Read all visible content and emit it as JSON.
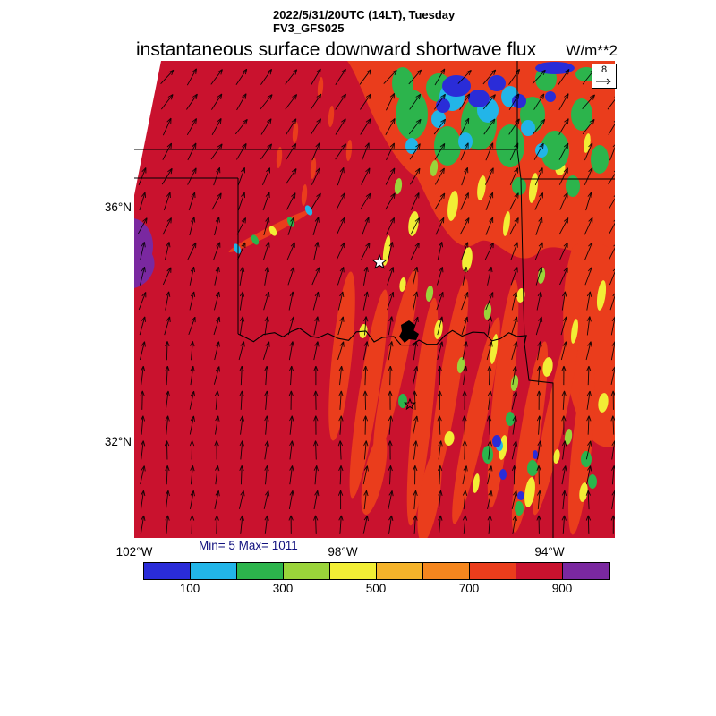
{
  "header": {
    "datetime": "2022/5/31/20UTC (14LT), Tuesday",
    "model": "FV3_GFS025"
  },
  "title": {
    "main": "instantaneous surface downward shortwave flux",
    "units": "W/m**2"
  },
  "reference_vector": {
    "value": "8"
  },
  "stats": {
    "min_max": "Min= 5 Max= 1011"
  },
  "chart_data": {
    "type": "heatmap",
    "title": "instantaneous surface downward shortwave flux",
    "units": "W/m**2",
    "valid_time": "2022/5/31/20UTC (14LT), Tuesday",
    "model": "FV3_GFS025",
    "field_min": 5,
    "field_max": 1011,
    "overlay": "wind vectors",
    "wind_reference_value": 8,
    "colorbar": {
      "segment_bounds": [
        0,
        100,
        200,
        300,
        400,
        500,
        600,
        700,
        800,
        900,
        1000
      ],
      "tick_labels": [
        "100",
        "300",
        "500",
        "700",
        "900"
      ],
      "colors": [
        "#2a2cd8",
        "#22b5e8",
        "#2cb44c",
        "#9ad43a",
        "#f2ee35",
        "#f5b32a",
        "#f5861e",
        "#ea3d1c",
        "#c9122e",
        "#7a28a0"
      ]
    },
    "map": {
      "lat_ticks": [
        "36°N",
        "32°N"
      ],
      "lon_ticks": [
        "102°W",
        "98°W",
        "94°W"
      ]
    }
  }
}
